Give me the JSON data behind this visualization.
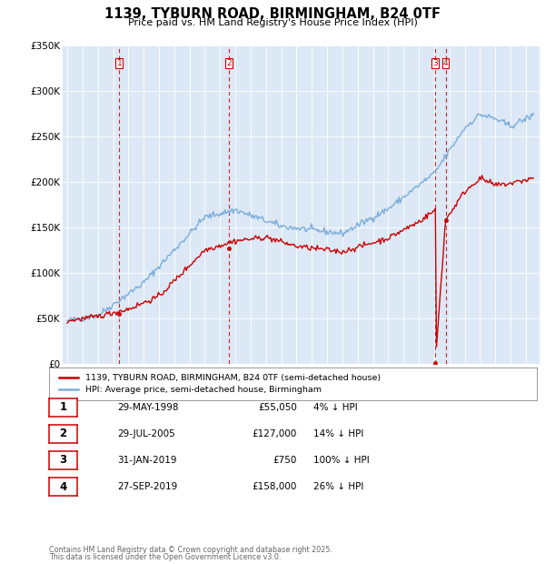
{
  "title": "1139, TYBURN ROAD, BIRMINGHAM, B24 0TF",
  "subtitle": "Price paid vs. HM Land Registry's House Price Index (HPI)",
  "legend_label_red": "1139, TYBURN ROAD, BIRMINGHAM, B24 0TF (semi-detached house)",
  "legend_label_blue": "HPI: Average price, semi-detached house, Birmingham",
  "ylim": [
    0,
    350000
  ],
  "yticks": [
    0,
    50000,
    100000,
    150000,
    200000,
    250000,
    300000,
    350000
  ],
  "ytick_labels": [
    "£0",
    "£50K",
    "£100K",
    "£150K",
    "£200K",
    "£250K",
    "£300K",
    "£350K"
  ],
  "transactions": [
    {
      "num": 1,
      "date": "29-MAY-1998",
      "year": 1998.41,
      "price": 55050,
      "pct": "4%",
      "dir": "↓"
    },
    {
      "num": 2,
      "date": "29-JUL-2005",
      "year": 2005.58,
      "price": 127000,
      "pct": "14%",
      "dir": "↓"
    },
    {
      "num": 3,
      "date": "31-JAN-2019",
      "year": 2019.08,
      "price": 750,
      "pct": "100%",
      "dir": "↓"
    },
    {
      "num": 4,
      "date": "27-SEP-2019",
      "year": 2019.75,
      "price": 158000,
      "pct": "26%",
      "dir": "↓"
    }
  ],
  "footer_line1": "Contains HM Land Registry data © Crown copyright and database right 2025.",
  "footer_line2": "This data is licensed under the Open Government Licence v3.0.",
  "color_red": "#cc0000",
  "color_blue": "#7aaddb",
  "color_vline": "#cc0000",
  "bg_chart": "#dce8f5",
  "bg_figure": "#ffffff"
}
